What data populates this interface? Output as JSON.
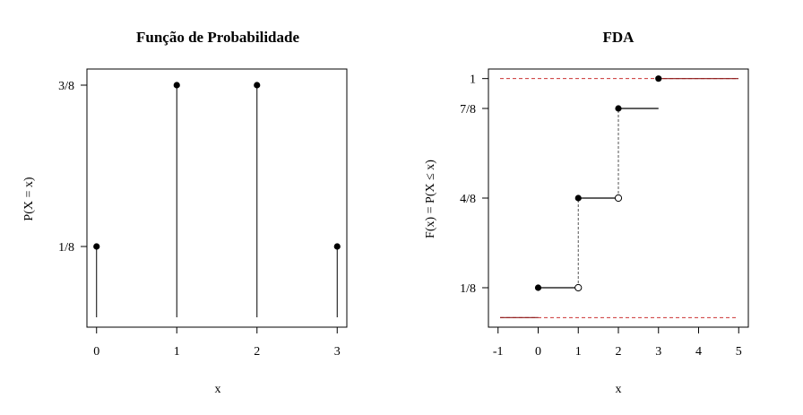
{
  "chart_data": [
    {
      "type": "stem",
      "title": "Função de Probabilidade",
      "xlabel": "x",
      "ylabel": "P(X = x)",
      "x": [
        0,
        1,
        2,
        3
      ],
      "y": [
        0.125,
        0.375,
        0.375,
        0.125
      ],
      "xticks": [
        "0",
        "1",
        "2",
        "3"
      ],
      "yticks": [
        {
          "value": 0.125,
          "label": "1/8"
        },
        {
          "value": 0.375,
          "label": "3/8"
        }
      ],
      "xlim": [
        -0.12,
        3.12
      ],
      "ylim": [
        0,
        0.4
      ],
      "grid": false,
      "colors": {
        "line": "#000000",
        "point": "#000000"
      }
    },
    {
      "type": "step",
      "title": "FDA",
      "xlabel": "x",
      "ylabel": "F(x) = P(X ≤ x)",
      "steps": [
        {
          "x_start": 0,
          "x_end": 1,
          "y": 0.125
        },
        {
          "x_start": 1,
          "x_end": 2,
          "y": 0.5
        },
        {
          "x_start": 2,
          "x_end": 3,
          "y": 0.875
        },
        {
          "x_start": 3,
          "x_end": 5,
          "y": 1
        }
      ],
      "lower_segment": {
        "x_start": -1,
        "x_end": 0,
        "y": 0
      },
      "jumps": [
        {
          "x": 1,
          "y_from": 0.125,
          "y_to": 0.5
        },
        {
          "x": 2,
          "y_from": 0.5,
          "y_to": 0.875
        }
      ],
      "closed_points": [
        {
          "x": 0,
          "y": 0.125
        },
        {
          "x": 1,
          "y": 0.5
        },
        {
          "x": 2,
          "y": 0.875
        },
        {
          "x": 3,
          "y": 1
        }
      ],
      "open_points": [
        {
          "x": 1,
          "y": 0.125
        },
        {
          "x": 2,
          "y": 0.5
        }
      ],
      "reference_lines": [
        0,
        1
      ],
      "xticks": [
        "-1",
        "0",
        "1",
        "2",
        "3",
        "4",
        "5"
      ],
      "yticks": [
        {
          "value": 0.125,
          "label": "1/8"
        },
        {
          "value": 0.5,
          "label": "4/8"
        },
        {
          "value": 0.875,
          "label": "7/8"
        },
        {
          "value": 1,
          "label": "1"
        }
      ],
      "xlim": [
        -1.24,
        5.24
      ],
      "ylim": [
        -0.04,
        1.04
      ],
      "grid": false,
      "colors": {
        "step": "#000000",
        "jump": "#555555",
        "reference": "#cc3333",
        "extension": "#8b1a1a"
      }
    }
  ]
}
